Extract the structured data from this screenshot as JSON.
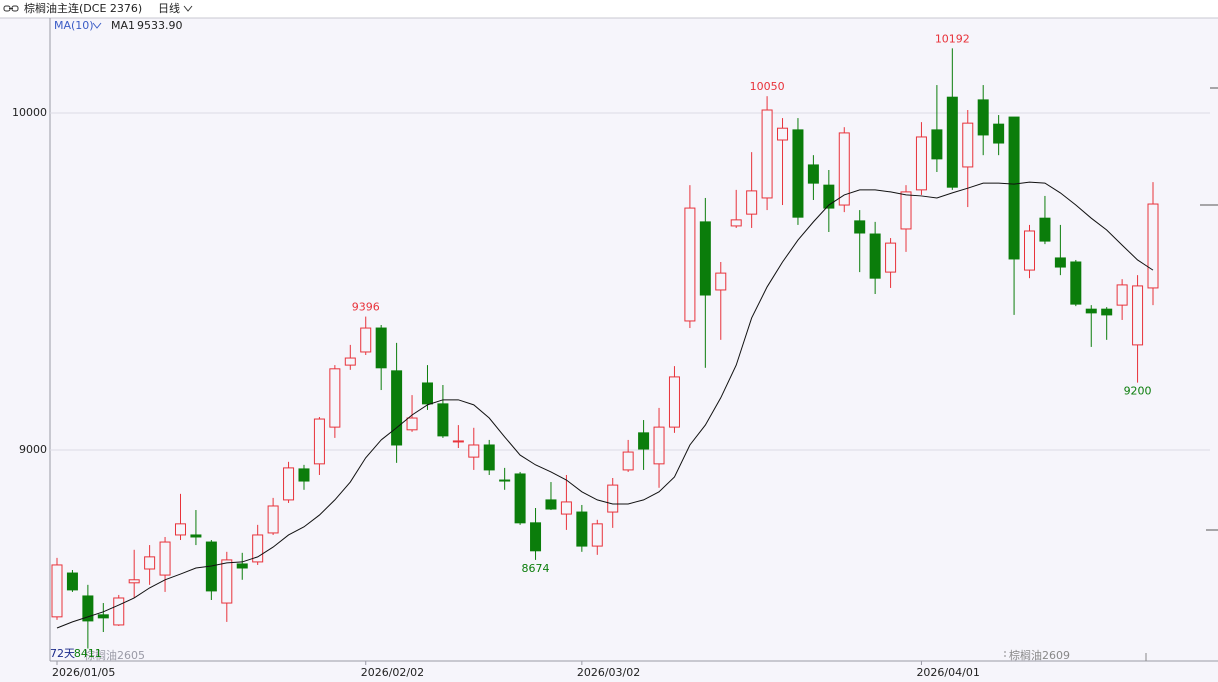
{
  "chart_data": {
    "type": "candlestick",
    "title": "棕榈油主连(DCE 2376)",
    "period": "日线",
    "indicator": "MA(10)",
    "day_count": "72天",
    "contracts": [
      "棕榈油2605",
      "棕榈油2609"
    ],
    "categories": [
      "2026/01/05",
      null,
      null,
      null,
      null,
      null,
      null,
      null,
      null,
      null,
      null,
      null,
      null,
      null,
      null,
      null,
      null,
      null,
      null,
      null,
      "2026/02/02",
      null,
      null,
      null,
      null,
      null,
      null,
      null,
      null,
      null,
      null,
      null,
      null,
      null,
      "2026/03/02",
      null,
      null,
      null,
      null,
      null,
      null,
      null,
      null,
      null,
      null,
      null,
      null,
      null,
      null,
      null,
      null,
      null,
      null,
      null,
      null,
      null,
      "2026/04/01",
      null,
      null,
      null,
      null,
      null,
      null,
      null,
      null,
      null,
      null,
      null,
      null,
      null,
      null,
      null
    ],
    "open": [
      8505,
      8635,
      8567,
      8511,
      8481,
      8606,
      8647,
      8629,
      8748,
      8748,
      8727,
      8546,
      8662,
      8668,
      8754,
      8852,
      8944,
      8959,
      9068,
      9252,
      9291,
      9362,
      9235,
      9060,
      9199,
      9137,
      9024,
      8979,
      9015,
      8911,
      8929,
      8784,
      8852,
      8810,
      8816,
      8715,
      8816,
      8941,
      9051,
      8959,
      9068,
      9383,
      9677,
      9475,
      9665,
      9700,
      9748,
      9920,
      9950,
      9846,
      9786,
      9727,
      9680,
      9641,
      9528,
      9656,
      9772,
      9950,
      10047,
      9840,
      10039,
      9967,
      9988,
      9534,
      9688,
      9570,
      9558,
      9418,
      9418,
      9430,
      9312,
      9481
    ],
    "high": [
      8680,
      8644,
      8600,
      8546,
      8570,
      8704,
      8718,
      8742,
      8870,
      8822,
      8733,
      8698,
      8695,
      8778,
      8858,
      8965,
      8956,
      9098,
      9252,
      9312,
      9396,
      9371,
      9318,
      9163,
      9252,
      9193,
      9074,
      9066,
      9030,
      8947,
      8935,
      8828,
      8905,
      8926,
      8837,
      8793,
      8917,
      9030,
      9089,
      9125,
      9249,
      9786,
      9748,
      9558,
      9772,
      9884,
      10050,
      9985,
      9985,
      9875,
      9831,
      9958,
      9712,
      9677,
      9629,
      9786,
      9973,
      10083,
      10192,
      10009,
      10083,
      9994,
      9988,
      9668,
      9754,
      9668,
      9564,
      9430,
      9424,
      9507,
      9519,
      9795
    ],
    "low": [
      8496,
      8579,
      8411,
      8460,
      8478,
      8561,
      8600,
      8579,
      8733,
      8718,
      8555,
      8490,
      8615,
      8659,
      8748,
      8843,
      8882,
      8926,
      9036,
      9238,
      9282,
      9178,
      8962,
      9054,
      9119,
      9036,
      9006,
      8941,
      8926,
      8882,
      8778,
      8674,
      8822,
      8763,
      8698,
      8689,
      8769,
      8935,
      8941,
      8888,
      9051,
      9362,
      9244,
      9327,
      9659,
      9659,
      9712,
      9727,
      9668,
      9742,
      9647,
      9706,
      9528,
      9463,
      9481,
      9588,
      9757,
      9825,
      9772,
      9721,
      9875,
      9875,
      9401,
      9510,
      9611,
      9519,
      9427,
      9306,
      9327,
      9386,
      9200,
      9430
    ],
    "close": [
      8659,
      8585,
      8493,
      8502,
      8561,
      8615,
      8683,
      8727,
      8781,
      8742,
      8582,
      8674,
      8650,
      8748,
      8834,
      8947,
      8908,
      9092,
      9241,
      9273,
      9362,
      9244,
      9015,
      9095,
      9137,
      9042,
      9027,
      9015,
      8941,
      8908,
      8784,
      8701,
      8825,
      8846,
      8715,
      8781,
      8896,
      8994,
      9003,
      9068,
      9217,
      9718,
      9460,
      9525,
      9683,
      9769,
      10009,
      9955,
      9691,
      9792,
      9718,
      9941,
      9644,
      9510,
      9614,
      9766,
      9929,
      9864,
      9780,
      9970,
      9935,
      9911,
      9567,
      9650,
      9620,
      9543,
      9433,
      9407,
      9401,
      9490,
      9487,
      9730
    ],
    "up_color": "#e8323a",
    "down_color": "#0b7d0b",
    "ma": {
      "name": "MA1",
      "color": "#111111",
      "last_value_label": "9533.90",
      "values": [
        8472,
        8490,
        8505,
        8520,
        8540,
        8561,
        8591,
        8615,
        8632,
        8650,
        8656,
        8665,
        8668,
        8683,
        8712,
        8748,
        8772,
        8807,
        8852,
        8905,
        8977,
        9030,
        9066,
        9104,
        9134,
        9149,
        9149,
        9134,
        9095,
        9039,
        8985,
        8956,
        8935,
        8911,
        8876,
        8852,
        8840,
        8840,
        8852,
        8876,
        8920,
        9015,
        9074,
        9155,
        9252,
        9392,
        9484,
        9558,
        9623,
        9677,
        9727,
        9757,
        9772,
        9772,
        9766,
        9757,
        9754,
        9748,
        9763,
        9777,
        9792,
        9792,
        9789,
        9795,
        9792,
        9763,
        9727,
        9688,
        9653,
        9608,
        9564,
        9533.9
      ]
    },
    "ylim": [
      8374,
      10282
    ],
    "yticks": [
      9000,
      10000
    ],
    "grid": true
  }
}
